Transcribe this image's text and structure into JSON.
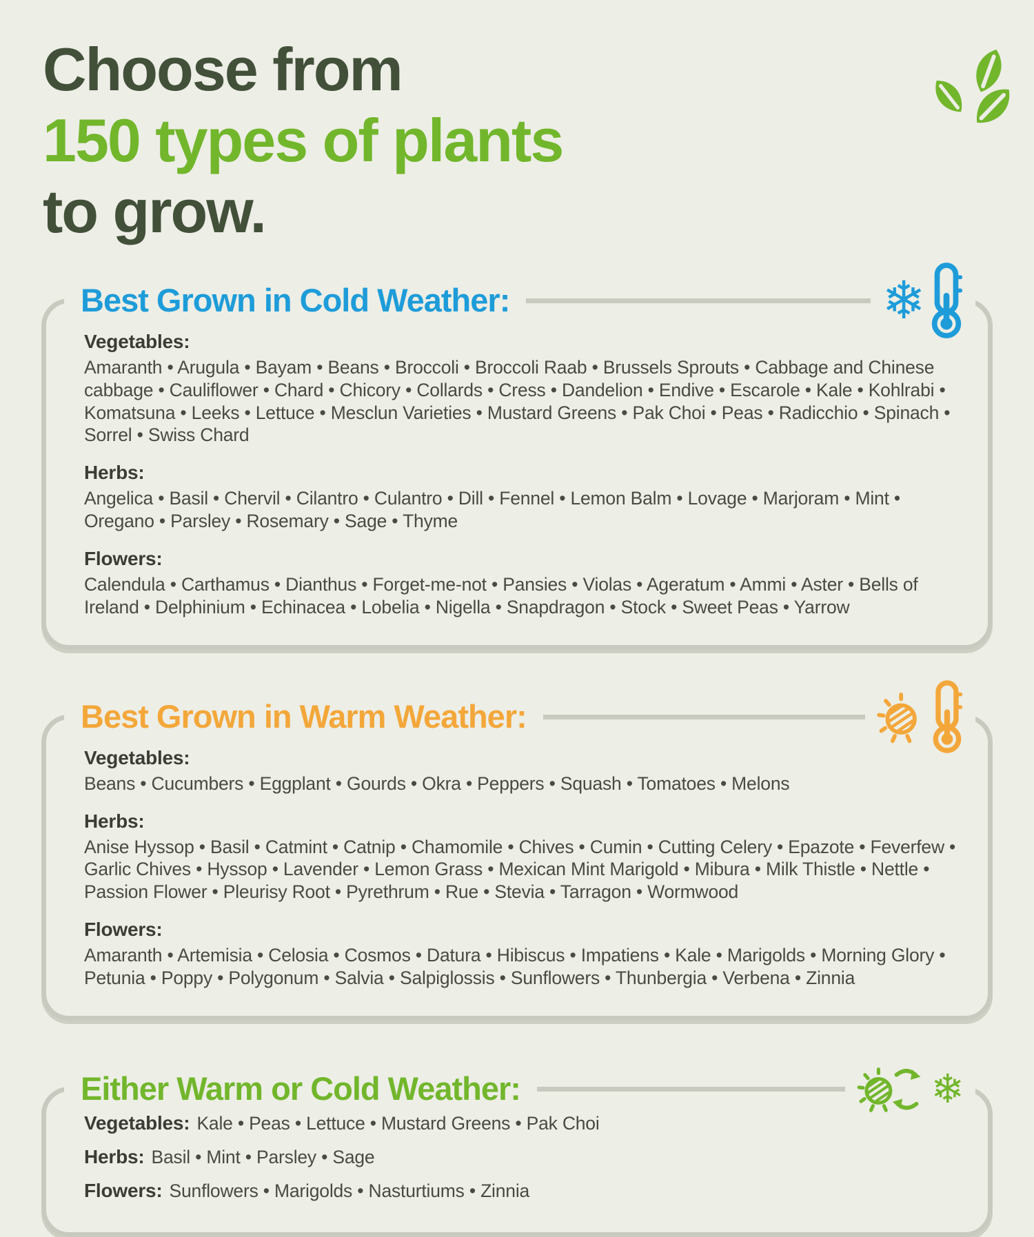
{
  "colors": {
    "background": "#EDEEE6",
    "box_border": "#C9CABF",
    "title_dark_green": "#42503A",
    "accent_green": "#72B62C",
    "accent_blue": "#1E9CD9",
    "accent_orange": "#F3A73A",
    "body_text": "#4A4A43",
    "label_text": "#3B3C35"
  },
  "title": {
    "line1": "Choose from",
    "line2": "150 types of plants",
    "line3": "to grow."
  },
  "logo_icon": "three-leaves",
  "separator": " • ",
  "sections": [
    {
      "heading": "Best Grown in Cold Weather:",
      "color": "#1E9CD9",
      "icon": "snowflake-thermometer",
      "layout": "stacked",
      "groups": [
        {
          "label": "Vegetables:",
          "items": [
            "Amaranth",
            "Arugula",
            "Bayam",
            "Beans",
            "Broccoli",
            "Broccoli Raab",
            "Brussels Sprouts",
            "Cabbage and Chinese cabbage",
            "Cauliflower",
            "Chard",
            "Chicory",
            "Collards",
            "Cress",
            "Dandelion",
            "Endive",
            "Escarole",
            "Kale",
            "Kohlrabi",
            "Komatsuna",
            "Leeks",
            "Lettuce",
            "Mesclun Varieties",
            "Mustard Greens",
            "Pak Choi",
            "Peas",
            "Radicchio",
            "Spinach",
            "Sorrel",
            "Swiss Chard"
          ]
        },
        {
          "label": "Herbs:",
          "items": [
            "Angelica",
            "Basil",
            "Chervil",
            "Cilantro",
            "Culantro",
            "Dill",
            "Fennel",
            "Lemon Balm",
            "Lovage",
            "Marjoram",
            "Mint",
            "Oregano",
            "Parsley",
            "Rosemary",
            "Sage",
            "Thyme"
          ]
        },
        {
          "label": "Flowers:",
          "items": [
            "Calendula",
            "Carthamus",
            "Dianthus",
            "Forget-me-not",
            "Pansies",
            "Violas",
            "Ageratum",
            "Ammi",
            "Aster",
            "Bells of Ireland",
            "Delphinium",
            "Echinacea",
            "Lobelia",
            "Nigella",
            "Snapdragon",
            "Stock",
            "Sweet Peas",
            "Yarrow"
          ]
        }
      ]
    },
    {
      "heading": "Best Grown in Warm Weather:",
      "color": "#F3A73A",
      "icon": "sun-thermometer",
      "layout": "stacked",
      "groups": [
        {
          "label": "Vegetables:",
          "items": [
            "Beans",
            "Cucumbers",
            "Eggplant",
            "Gourds",
            "Okra",
            "Peppers",
            "Squash",
            "Tomatoes",
            "Melons"
          ]
        },
        {
          "label": "Herbs:",
          "items": [
            "Anise Hyssop",
            "Basil",
            "Catmint",
            "Catnip",
            "Chamomile",
            "Chives",
            "Cumin",
            "Cutting Celery",
            "Epazote",
            "Feverfew",
            "Garlic Chives",
            "Hyssop",
            "Lavender",
            "Lemon Grass",
            "Mexican Mint Marigold",
            "Mibura",
            "Milk Thistle",
            "Nettle",
            "Passion Flower",
            "Pleurisy Root",
            "Pyrethrum",
            "Rue",
            "Stevia",
            "Tarragon",
            "Wormwood"
          ]
        },
        {
          "label": "Flowers:",
          "items": [
            "Amaranth",
            "Artemisia",
            "Celosia",
            "Cosmos",
            "Datura",
            "Hibiscus",
            "Impatiens",
            "Kale",
            "Marigolds",
            "Morning Glory",
            "Petunia",
            "Poppy",
            "Polygonum",
            "Salvia",
            "Salpiglossis",
            "Sunflowers",
            "Thunbergia",
            "Verbena",
            "Zinnia"
          ]
        }
      ]
    },
    {
      "heading": "Either Warm or Cold Weather:",
      "color": "#72B62C",
      "icon": "sun-snowflake-cycle",
      "layout": "inline",
      "groups": [
        {
          "label": "Vegetables:",
          "items": [
            "Kale",
            "Peas",
            "Lettuce",
            "Mustard Greens",
            "Pak Choi"
          ]
        },
        {
          "label": "Herbs:",
          "items": [
            "Basil",
            "Mint",
            "Parsley",
            "Sage"
          ]
        },
        {
          "label": "Flowers:",
          "items": [
            "Sunflowers",
            "Marigolds",
            "Nasturtiums",
            "Zinnia"
          ]
        }
      ]
    }
  ]
}
